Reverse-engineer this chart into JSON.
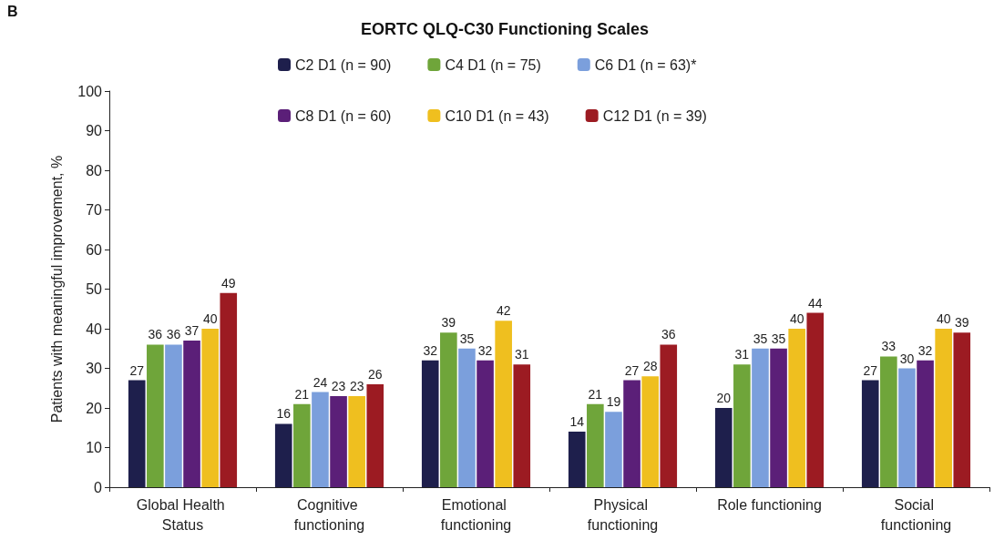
{
  "chart_data": {
    "type": "bar",
    "title": "EORTC QLQ-C30 Functioning Scales",
    "ylabel": "Patients with meaningful improvement, %",
    "annotations": [
      "B"
    ],
    "categories": [
      "Global Health Status",
      "Cognitive functioning",
      "Emotional functioning",
      "Physical functioning",
      "Role functioning",
      "Social functioning"
    ],
    "series": [
      {
        "name": "C2 D1 (n = 90)",
        "color": "#1e1f4c",
        "values": [
          27,
          16,
          32,
          14,
          20,
          27
        ]
      },
      {
        "name": "C4 D1 (n = 75)",
        "color": "#6fa53a",
        "values": [
          36,
          21,
          39,
          21,
          31,
          33
        ]
      },
      {
        "name": "C6 D1 (n = 63)*",
        "color": "#7b9fdc",
        "values": [
          36,
          24,
          35,
          19,
          35,
          30
        ]
      },
      {
        "name": "C8 D1 (n = 60)",
        "color": "#5b1f78",
        "values": [
          37,
          23,
          32,
          27,
          35,
          32
        ]
      },
      {
        "name": "C10 D1 (n = 43)",
        "color": "#efbf1f",
        "values": [
          40,
          23,
          42,
          28,
          40,
          40
        ]
      },
      {
        "name": "C12 D1 (n = 39)",
        "color": "#9c1b22",
        "values": [
          49,
          26,
          31,
          36,
          44,
          39
        ]
      }
    ],
    "ylim": [
      0,
      100
    ],
    "yticks": [
      0,
      10,
      20,
      30,
      40,
      50,
      60,
      70,
      80,
      90,
      100
    ],
    "grid": false,
    "legend": "top",
    "data_labels": true
  }
}
